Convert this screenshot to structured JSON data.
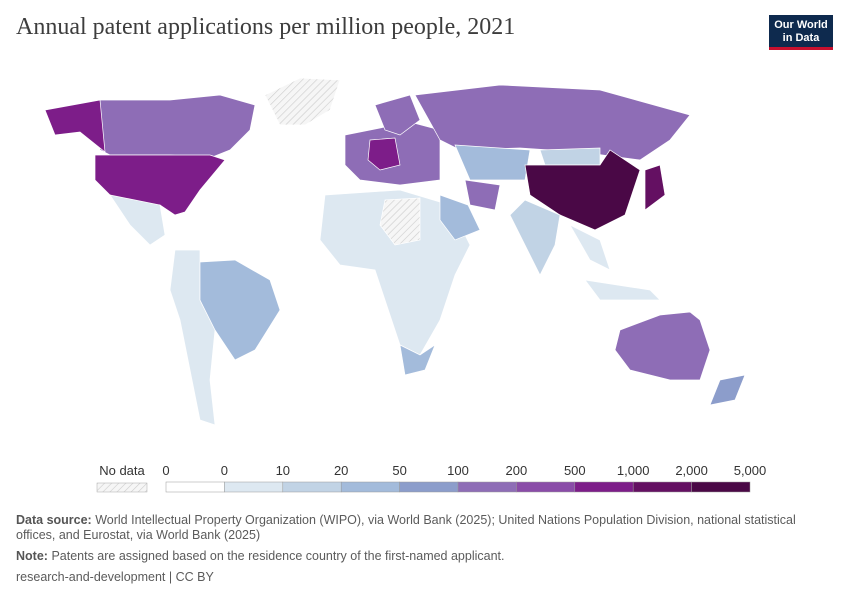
{
  "header": {
    "title": "Annual patent applications per million people, 2021",
    "logo": [
      "Our World",
      "in Data"
    ]
  },
  "legend": {
    "no_data": "No data",
    "labels": [
      "0",
      "0",
      "10",
      "20",
      "50",
      "100",
      "200",
      "500",
      "1,000",
      "2,000",
      "5,000"
    ],
    "colors": [
      "#ffffff",
      "#dde8f1",
      "#c1d3e5",
      "#a3bbdb",
      "#8c9dcb",
      "#8e6db6",
      "#8a4ca8",
      "#7d1d89",
      "#641062",
      "#4a0846"
    ]
  },
  "footer": {
    "source_label": "Data source:",
    "source": "World Intellectual Property Organization (WIPO), via World Bank (2025); United Nations Population Division, national statistical offices, and Eurostat, via World Bank (2025)",
    "note_label": "Note:",
    "note": "Patents are assigned based on the residence country of the first-named applicant.",
    "credit": "research-and-development | CC BY"
  }
}
